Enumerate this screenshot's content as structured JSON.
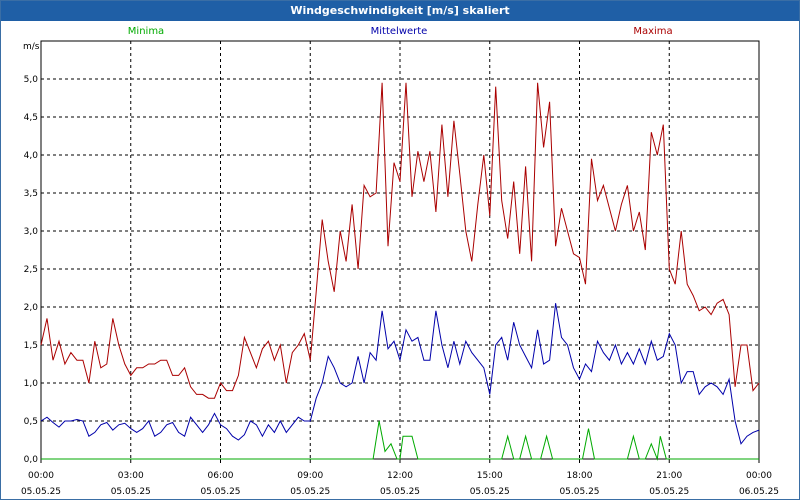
{
  "window": {
    "title": "Windgeschwindigkeit [m/s] skaliert"
  },
  "chart_data": {
    "type": "line",
    "title": "Windgeschwindigkeit [m/s] skaliert",
    "ylabel": "m/s",
    "ylim": [
      0,
      5.5
    ],
    "yticks": [
      "0,0",
      "0,5",
      "1,0",
      "1,5",
      "2,0",
      "2,5",
      "3,0",
      "3,5",
      "4,0",
      "4,5",
      "5,0"
    ],
    "xlim_hours": [
      0,
      24
    ],
    "xticks": [
      {
        "time": "00:00",
        "date": "05.05.25"
      },
      {
        "time": "03:00",
        "date": "05.05.25"
      },
      {
        "time": "06:00",
        "date": "05.05.25"
      },
      {
        "time": "09:00",
        "date": "05.05.25"
      },
      {
        "time": "12:00",
        "date": "05.05.25"
      },
      {
        "time": "15:00",
        "date": "05.05.25"
      },
      {
        "time": "18:00",
        "date": "05.05.25"
      },
      {
        "time": "21:00",
        "date": "05.05.25"
      },
      {
        "time": "00:00",
        "date": "06.05.25"
      }
    ],
    "grid": true,
    "legend_position": "top",
    "series": [
      {
        "name": "Minima",
        "color": "#00aa00",
        "points": [
          [
            0,
            0
          ],
          [
            11.1,
            0
          ],
          [
            11.3,
            0.5
          ],
          [
            11.5,
            0.1
          ],
          [
            11.7,
            0.2
          ],
          [
            11.9,
            0
          ],
          [
            12.0,
            0
          ],
          [
            12.1,
            0.3
          ],
          [
            12.3,
            0.3
          ],
          [
            12.4,
            0.3
          ],
          [
            12.6,
            0
          ],
          [
            15.4,
            0
          ],
          [
            15.6,
            0.3
          ],
          [
            15.8,
            0
          ],
          [
            16.0,
            0
          ],
          [
            16.2,
            0.3
          ],
          [
            16.4,
            0
          ],
          [
            16.7,
            0
          ],
          [
            16.9,
            0.3
          ],
          [
            17.1,
            0
          ],
          [
            18.1,
            0
          ],
          [
            18.3,
            0.4
          ],
          [
            18.5,
            0
          ],
          [
            19.6,
            0
          ],
          [
            19.8,
            0.3
          ],
          [
            20.0,
            0
          ],
          [
            20.2,
            0
          ],
          [
            20.4,
            0.2
          ],
          [
            20.6,
            0
          ],
          [
            20.7,
            0.3
          ],
          [
            20.9,
            0
          ],
          [
            24,
            0
          ]
        ]
      },
      {
        "name": "Mittelwerte",
        "color": "#0000aa",
        "points": [
          [
            0,
            0.5
          ],
          [
            0.2,
            0.55
          ],
          [
            0.4,
            0.48
          ],
          [
            0.6,
            0.42
          ],
          [
            0.8,
            0.5
          ],
          [
            1.0,
            0.5
          ],
          [
            1.2,
            0.52
          ],
          [
            1.4,
            0.5
          ],
          [
            1.6,
            0.3
          ],
          [
            1.8,
            0.35
          ],
          [
            2.0,
            0.45
          ],
          [
            2.2,
            0.48
          ],
          [
            2.4,
            0.38
          ],
          [
            2.6,
            0.45
          ],
          [
            2.8,
            0.47
          ],
          [
            3.0,
            0.4
          ],
          [
            3.2,
            0.35
          ],
          [
            3.4,
            0.4
          ],
          [
            3.6,
            0.5
          ],
          [
            3.8,
            0.3
          ],
          [
            4.0,
            0.35
          ],
          [
            4.2,
            0.45
          ],
          [
            4.4,
            0.48
          ],
          [
            4.6,
            0.35
          ],
          [
            4.8,
            0.3
          ],
          [
            5.0,
            0.55
          ],
          [
            5.2,
            0.45
          ],
          [
            5.4,
            0.35
          ],
          [
            5.6,
            0.45
          ],
          [
            5.8,
            0.6
          ],
          [
            6.0,
            0.45
          ],
          [
            6.2,
            0.4
          ],
          [
            6.4,
            0.3
          ],
          [
            6.6,
            0.25
          ],
          [
            6.8,
            0.32
          ],
          [
            7.0,
            0.5
          ],
          [
            7.2,
            0.45
          ],
          [
            7.4,
            0.3
          ],
          [
            7.6,
            0.45
          ],
          [
            7.8,
            0.35
          ],
          [
            8.0,
            0.5
          ],
          [
            8.2,
            0.35
          ],
          [
            8.4,
            0.45
          ],
          [
            8.6,
            0.55
          ],
          [
            8.8,
            0.5
          ],
          [
            9.0,
            0.5
          ],
          [
            9.2,
            0.8
          ],
          [
            9.4,
            1.0
          ],
          [
            9.6,
            1.35
          ],
          [
            9.8,
            1.2
          ],
          [
            10.0,
            1.0
          ],
          [
            10.2,
            0.95
          ],
          [
            10.4,
            1.0
          ],
          [
            10.6,
            1.35
          ],
          [
            10.8,
            1.0
          ],
          [
            11.0,
            1.4
          ],
          [
            11.2,
            1.3
          ],
          [
            11.4,
            1.95
          ],
          [
            11.6,
            1.45
          ],
          [
            11.8,
            1.55
          ],
          [
            12.0,
            1.3
          ],
          [
            12.2,
            1.7
          ],
          [
            12.4,
            1.55
          ],
          [
            12.6,
            1.6
          ],
          [
            12.8,
            1.3
          ],
          [
            13.0,
            1.3
          ],
          [
            13.2,
            1.95
          ],
          [
            13.4,
            1.5
          ],
          [
            13.6,
            1.2
          ],
          [
            13.8,
            1.55
          ],
          [
            14.0,
            1.25
          ],
          [
            14.2,
            1.55
          ],
          [
            14.4,
            1.4
          ],
          [
            14.6,
            1.3
          ],
          [
            14.8,
            1.2
          ],
          [
            15.0,
            0.85
          ],
          [
            15.2,
            1.5
          ],
          [
            15.4,
            1.6
          ],
          [
            15.6,
            1.3
          ],
          [
            15.8,
            1.8
          ],
          [
            16.0,
            1.5
          ],
          [
            16.2,
            1.35
          ],
          [
            16.4,
            1.2
          ],
          [
            16.6,
            1.7
          ],
          [
            16.8,
            1.25
          ],
          [
            17.0,
            1.3
          ],
          [
            17.2,
            2.05
          ],
          [
            17.4,
            1.6
          ],
          [
            17.6,
            1.5
          ],
          [
            17.8,
            1.2
          ],
          [
            18.0,
            1.05
          ],
          [
            18.2,
            1.25
          ],
          [
            18.4,
            1.15
          ],
          [
            18.6,
            1.55
          ],
          [
            18.8,
            1.4
          ],
          [
            19.0,
            1.3
          ],
          [
            19.2,
            1.5
          ],
          [
            19.4,
            1.25
          ],
          [
            19.6,
            1.4
          ],
          [
            19.8,
            1.25
          ],
          [
            20.0,
            1.45
          ],
          [
            20.2,
            1.25
          ],
          [
            20.4,
            1.55
          ],
          [
            20.6,
            1.3
          ],
          [
            20.8,
            1.35
          ],
          [
            21.0,
            1.65
          ],
          [
            21.2,
            1.5
          ],
          [
            21.4,
            1.0
          ],
          [
            21.6,
            1.15
          ],
          [
            21.8,
            1.15
          ],
          [
            22.0,
            0.85
          ],
          [
            22.2,
            0.95
          ],
          [
            22.4,
            1.0
          ],
          [
            22.6,
            0.95
          ],
          [
            22.8,
            0.85
          ],
          [
            23.0,
            1.05
          ],
          [
            23.2,
            0.5
          ],
          [
            23.4,
            0.2
          ],
          [
            23.6,
            0.3
          ],
          [
            23.8,
            0.35
          ],
          [
            24.0,
            0.38
          ]
        ]
      },
      {
        "name": "Maxima",
        "color": "#aa0000",
        "points": [
          [
            0,
            1.5
          ],
          [
            0.2,
            1.85
          ],
          [
            0.4,
            1.3
          ],
          [
            0.6,
            1.55
          ],
          [
            0.8,
            1.25
          ],
          [
            1.0,
            1.4
          ],
          [
            1.2,
            1.3
          ],
          [
            1.4,
            1.3
          ],
          [
            1.6,
            1.0
          ],
          [
            1.8,
            1.55
          ],
          [
            2.0,
            1.2
          ],
          [
            2.2,
            1.25
          ],
          [
            2.4,
            1.85
          ],
          [
            2.6,
            1.5
          ],
          [
            2.8,
            1.25
          ],
          [
            3.0,
            1.1
          ],
          [
            3.2,
            1.2
          ],
          [
            3.4,
            1.2
          ],
          [
            3.6,
            1.25
          ],
          [
            3.8,
            1.25
          ],
          [
            4.0,
            1.3
          ],
          [
            4.2,
            1.3
          ],
          [
            4.4,
            1.1
          ],
          [
            4.6,
            1.1
          ],
          [
            4.8,
            1.2
          ],
          [
            5.0,
            0.95
          ],
          [
            5.2,
            0.85
          ],
          [
            5.4,
            0.85
          ],
          [
            5.6,
            0.8
          ],
          [
            5.8,
            0.8
          ],
          [
            6.0,
            1.0
          ],
          [
            6.2,
            0.9
          ],
          [
            6.4,
            0.9
          ],
          [
            6.6,
            1.1
          ],
          [
            6.8,
            1.6
          ],
          [
            7.0,
            1.4
          ],
          [
            7.2,
            1.2
          ],
          [
            7.4,
            1.45
          ],
          [
            7.6,
            1.55
          ],
          [
            7.8,
            1.3
          ],
          [
            8.0,
            1.5
          ],
          [
            8.2,
            1.0
          ],
          [
            8.4,
            1.4
          ],
          [
            8.6,
            1.5
          ],
          [
            8.8,
            1.65
          ],
          [
            9.0,
            1.3
          ],
          [
            9.2,
            2.2
          ],
          [
            9.4,
            3.15
          ],
          [
            9.6,
            2.6
          ],
          [
            9.8,
            2.2
          ],
          [
            10.0,
            3.0
          ],
          [
            10.2,
            2.6
          ],
          [
            10.4,
            3.35
          ],
          [
            10.6,
            2.5
          ],
          [
            10.8,
            3.6
          ],
          [
            11.0,
            3.45
          ],
          [
            11.2,
            3.5
          ],
          [
            11.4,
            4.95
          ],
          [
            11.6,
            2.8
          ],
          [
            11.8,
            3.9
          ],
          [
            12.0,
            3.65
          ],
          [
            12.2,
            4.95
          ],
          [
            12.4,
            3.45
          ],
          [
            12.6,
            4.05
          ],
          [
            12.8,
            3.65
          ],
          [
            13.0,
            4.05
          ],
          [
            13.2,
            3.25
          ],
          [
            13.4,
            4.4
          ],
          [
            13.6,
            3.45
          ],
          [
            13.8,
            4.45
          ],
          [
            14.0,
            3.75
          ],
          [
            14.2,
            3.0
          ],
          [
            14.4,
            2.6
          ],
          [
            14.6,
            3.35
          ],
          [
            14.8,
            4.0
          ],
          [
            15.0,
            3.2
          ],
          [
            15.2,
            4.9
          ],
          [
            15.4,
            3.4
          ],
          [
            15.6,
            2.9
          ],
          [
            15.8,
            3.65
          ],
          [
            16.0,
            2.7
          ],
          [
            16.2,
            3.85
          ],
          [
            16.4,
            2.6
          ],
          [
            16.6,
            4.95
          ],
          [
            16.8,
            4.1
          ],
          [
            17.0,
            4.7
          ],
          [
            17.2,
            2.8
          ],
          [
            17.4,
            3.3
          ],
          [
            17.6,
            3.0
          ],
          [
            17.8,
            2.7
          ],
          [
            18.0,
            2.65
          ],
          [
            18.2,
            2.3
          ],
          [
            18.4,
            3.95
          ],
          [
            18.6,
            3.4
          ],
          [
            18.8,
            3.6
          ],
          [
            19.0,
            3.3
          ],
          [
            19.2,
            3.0
          ],
          [
            19.4,
            3.35
          ],
          [
            19.6,
            3.6
          ],
          [
            19.8,
            3.0
          ],
          [
            20.0,
            3.25
          ],
          [
            20.2,
            2.75
          ],
          [
            20.4,
            4.3
          ],
          [
            20.6,
            4.0
          ],
          [
            20.8,
            4.4
          ],
          [
            21.0,
            2.5
          ],
          [
            21.2,
            2.3
          ],
          [
            21.4,
            3.0
          ],
          [
            21.6,
            2.3
          ],
          [
            21.8,
            2.15
          ],
          [
            22.0,
            1.95
          ],
          [
            22.2,
            2.0
          ],
          [
            22.4,
            1.9
          ],
          [
            22.6,
            2.05
          ],
          [
            22.8,
            2.1
          ],
          [
            23.0,
            1.9
          ],
          [
            23.2,
            0.95
          ],
          [
            23.4,
            1.5
          ],
          [
            23.6,
            1.5
          ],
          [
            23.8,
            0.9
          ],
          [
            24.0,
            1.0
          ]
        ]
      }
    ]
  }
}
